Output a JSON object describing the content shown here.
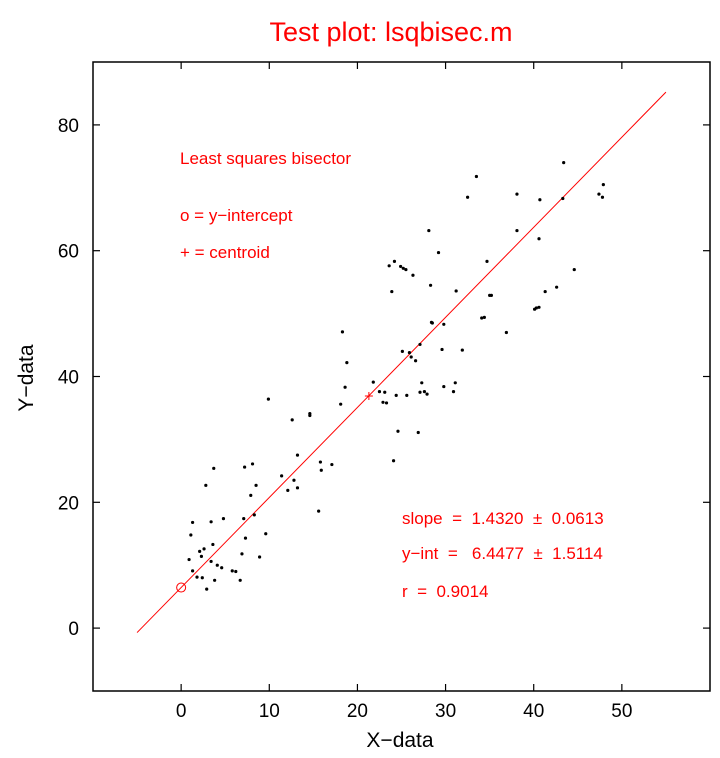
{
  "chart_data": {
    "type": "scatter",
    "title": "Test plot: lsqbisec.m",
    "xlabel": "X−data",
    "ylabel": "Y−data",
    "xlim": [
      -10,
      60
    ],
    "ylim": [
      -10,
      90
    ],
    "xticks": [
      0,
      10,
      20,
      30,
      40,
      50
    ],
    "yticks": [
      0,
      20,
      40,
      60,
      80
    ],
    "grid": false,
    "colors": {
      "points": "#000000",
      "fit": "#ff0000",
      "text": "#ff0000",
      "axes": "#000000"
    },
    "points": [
      [
        1.3,
        16.8
      ],
      [
        1.1,
        14.8
      ],
      [
        0.9,
        10.9
      ],
      [
        1.3,
        9.1
      ],
      [
        1.8,
        8.1
      ],
      [
        2.1,
        12.2
      ],
      [
        2.3,
        11.4
      ],
      [
        2.6,
        12.6
      ],
      [
        2.4,
        8.0
      ],
      [
        2.9,
        6.2
      ],
      [
        2.8,
        22.7
      ],
      [
        3.4,
        16.9
      ],
      [
        3.7,
        25.4
      ],
      [
        3.6,
        13.3
      ],
      [
        3.4,
        10.6
      ],
      [
        3.8,
        7.6
      ],
      [
        4.1,
        10.0
      ],
      [
        4.6,
        9.6
      ],
      [
        4.8,
        17.4
      ],
      [
        5.8,
        9.1
      ],
      [
        6.2,
        9.0
      ],
      [
        6.9,
        11.8
      ],
      [
        6.7,
        7.6
      ],
      [
        7.2,
        25.6
      ],
      [
        7.1,
        17.4
      ],
      [
        7.3,
        14.3
      ],
      [
        7.9,
        21.1
      ],
      [
        8.1,
        26.1
      ],
      [
        8.3,
        18.0
      ],
      [
        8.5,
        22.7
      ],
      [
        8.9,
        11.3
      ],
      [
        9.6,
        15.0
      ],
      [
        9.9,
        36.4
      ],
      [
        11.4,
        24.2
      ],
      [
        12.1,
        21.9
      ],
      [
        12.6,
        33.1
      ],
      [
        12.8,
        23.5
      ],
      [
        13.2,
        22.3
      ],
      [
        13.2,
        27.5
      ],
      [
        14.6,
        34.1
      ],
      [
        14.6,
        33.8
      ],
      [
        15.6,
        18.6
      ],
      [
        15.8,
        26.4
      ],
      [
        15.9,
        25.1
      ],
      [
        17.1,
        26.0
      ],
      [
        18.1,
        35.6
      ],
      [
        18.3,
        47.1
      ],
      [
        18.6,
        38.3
      ],
      [
        18.8,
        42.2
      ],
      [
        21.8,
        39.1
      ],
      [
        22.5,
        37.6
      ],
      [
        22.9,
        35.9
      ],
      [
        23.1,
        37.5
      ],
      [
        23.3,
        35.8
      ],
      [
        23.6,
        57.6
      ],
      [
        23.9,
        53.5
      ],
      [
        24.1,
        26.6
      ],
      [
        24.2,
        58.3
      ],
      [
        24.4,
        37.0
      ],
      [
        24.6,
        31.3
      ],
      [
        24.9,
        57.5
      ],
      [
        25.1,
        44.0
      ],
      [
        25.2,
        57.2
      ],
      [
        25.5,
        57.0
      ],
      [
        25.6,
        37.0
      ],
      [
        25.9,
        43.8
      ],
      [
        26.1,
        43.1
      ],
      [
        26.3,
        56.1
      ],
      [
        26.6,
        42.5
      ],
      [
        26.9,
        31.1
      ],
      [
        27.1,
        37.5
      ],
      [
        27.1,
        45.1
      ],
      [
        27.3,
        39.0
      ],
      [
        27.6,
        37.6
      ],
      [
        27.9,
        37.2
      ],
      [
        28.1,
        63.2
      ],
      [
        28.3,
        54.5
      ],
      [
        28.5,
        48.5
      ],
      [
        29.2,
        59.7
      ],
      [
        29.6,
        44.3
      ],
      [
        29.8,
        48.3
      ],
      [
        29.8,
        38.4
      ],
      [
        30.9,
        37.6
      ],
      [
        31.1,
        39.0
      ],
      [
        31.2,
        53.6
      ],
      [
        31.9,
        44.2
      ],
      [
        32.5,
        68.5
      ],
      [
        33.5,
        71.8
      ],
      [
        34.1,
        49.3
      ],
      [
        34.4,
        49.4
      ],
      [
        34.7,
        58.3
      ],
      [
        35.2,
        52.9
      ],
      [
        36.9,
        47.0
      ],
      [
        38.1,
        69.0
      ],
      [
        38.1,
        63.2
      ],
      [
        40.3,
        50.9
      ],
      [
        40.6,
        61.9
      ],
      [
        40.6,
        51.0
      ],
      [
        40.7,
        68.1
      ],
      [
        41.3,
        53.5
      ],
      [
        42.6,
        54.2
      ],
      [
        43.4,
        74.0
      ],
      [
        43.3,
        68.3
      ],
      [
        44.6,
        57.0
      ],
      [
        47.4,
        69.0
      ],
      [
        47.9,
        70.5
      ],
      [
        47.8,
        68.5
      ],
      [
        40.1,
        50.7
      ],
      [
        35.0,
        52.9
      ],
      [
        28.4,
        48.6
      ]
    ],
    "fit": {
      "slope": 1.432,
      "intercept": 6.4477,
      "x_range": [
        -5,
        55
      ]
    },
    "intercept_marker": [
      0,
      6.4477
    ],
    "centroid": [
      21.3,
      36.9
    ],
    "annotations": {
      "legend_title": "Least squares bisector",
      "legend_o": "o = y−intercept",
      "legend_plus": "+ = centroid",
      "slope_text": "slope  =  1.4320  ±  0.0613",
      "yint_text": "y−int  =   6.4477  ±  1.5114",
      "r_text": "r  =  0.9014"
    }
  }
}
